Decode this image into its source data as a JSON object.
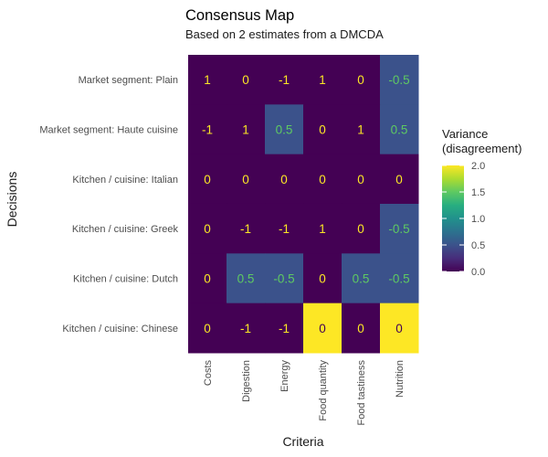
{
  "chart_data": {
    "type": "heatmap",
    "title": "Consensus Map",
    "subtitle": "Based on 2 estimates from a DMCDA",
    "xlabel": "Criteria",
    "ylabel": "Decisions",
    "x_categories": [
      "Costs",
      "Digestion",
      "Energy",
      "Food quantity",
      "Food tastiness",
      "Nutrition"
    ],
    "y_categories": [
      "Market segment: Plain",
      "Market segment: Haute cuisine",
      "Kitchen / cuisine: Italian",
      "Kitchen / cuisine: Greek",
      "Kitchen / cuisine: Dutch",
      "Kitchen / cuisine: Chinese"
    ],
    "values": [
      [
        "1",
        "0",
        "-1",
        "1",
        "0",
        "-0.5"
      ],
      [
        "-1",
        "1",
        "0.5",
        "0",
        "1",
        "0.5"
      ],
      [
        "0",
        "0",
        "0",
        "0",
        "0",
        "0"
      ],
      [
        "0",
        "-1",
        "-1",
        "1",
        "0",
        "-0.5"
      ],
      [
        "0",
        "0.5",
        "-0.5",
        "0",
        "0.5",
        "-0.5"
      ],
      [
        "0",
        "-1",
        "-1",
        "0",
        "0",
        "0"
      ]
    ],
    "variance": [
      [
        0,
        0,
        0,
        0,
        0,
        0.5
      ],
      [
        0,
        0,
        0.5,
        0,
        0,
        0.5
      ],
      [
        0,
        0,
        0,
        0,
        0,
        0
      ],
      [
        0,
        0,
        0,
        0,
        0,
        0.5
      ],
      [
        0,
        0.5,
        0.5,
        0,
        0.5,
        0.5
      ],
      [
        0,
        0,
        0,
        2,
        0,
        2
      ]
    ],
    "legend": {
      "title_lines": [
        "Variance",
        "(disagreement)"
      ],
      "ticks": [
        "0.0",
        "0.5",
        "1.0",
        "1.5",
        "2.0"
      ],
      "tick_values": [
        0,
        0.5,
        1,
        1.5,
        2
      ],
      "range": [
        0,
        2
      ],
      "placement": "right"
    },
    "colorscale": "viridis",
    "colors": {
      "low": "#440154",
      "mid": "#3b528b",
      "high": "#fde725",
      "label_on_dark": "#fde725",
      "label_on_mid": "#5ec962",
      "label_on_light": "#440154"
    }
  }
}
